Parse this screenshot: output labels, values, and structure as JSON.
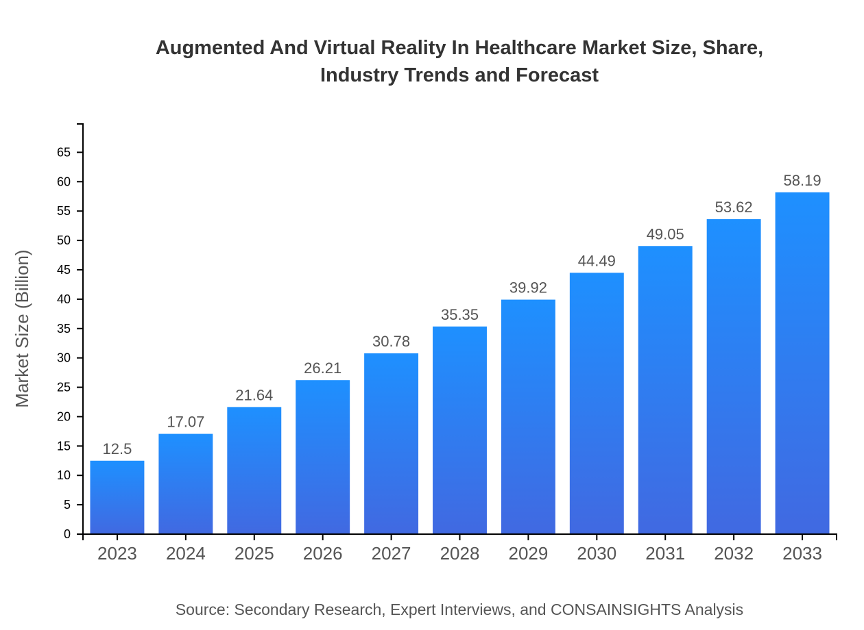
{
  "chart_data": {
    "type": "bar",
    "title_lines": [
      "Augmented And Virtual Reality In Healthcare Market Size, Share,",
      "Industry Trends and Forecast"
    ],
    "categories": [
      "2023",
      "2024",
      "2025",
      "2026",
      "2027",
      "2028",
      "2029",
      "2030",
      "2031",
      "2032",
      "2033"
    ],
    "values": [
      12.5,
      17.07,
      21.64,
      26.21,
      30.78,
      35.35,
      39.92,
      44.49,
      49.05,
      53.62,
      58.19
    ],
    "xlabel": "",
    "ylabel": "Market Size (Billion)",
    "ylim": [
      0,
      69.83
    ],
    "yticks": [
      0,
      5,
      10,
      15,
      20,
      25,
      30,
      35,
      40,
      45,
      50,
      55,
      60,
      65
    ],
    "grid": false,
    "data_labels": true,
    "colors": {
      "bar_top": "#1e90ff",
      "bar_bottom": "#4169e1",
      "text": "#555555",
      "title": "#333333"
    },
    "source": "Source: Secondary Research, Expert Interviews, and CONSAINSIGHTS Analysis"
  }
}
